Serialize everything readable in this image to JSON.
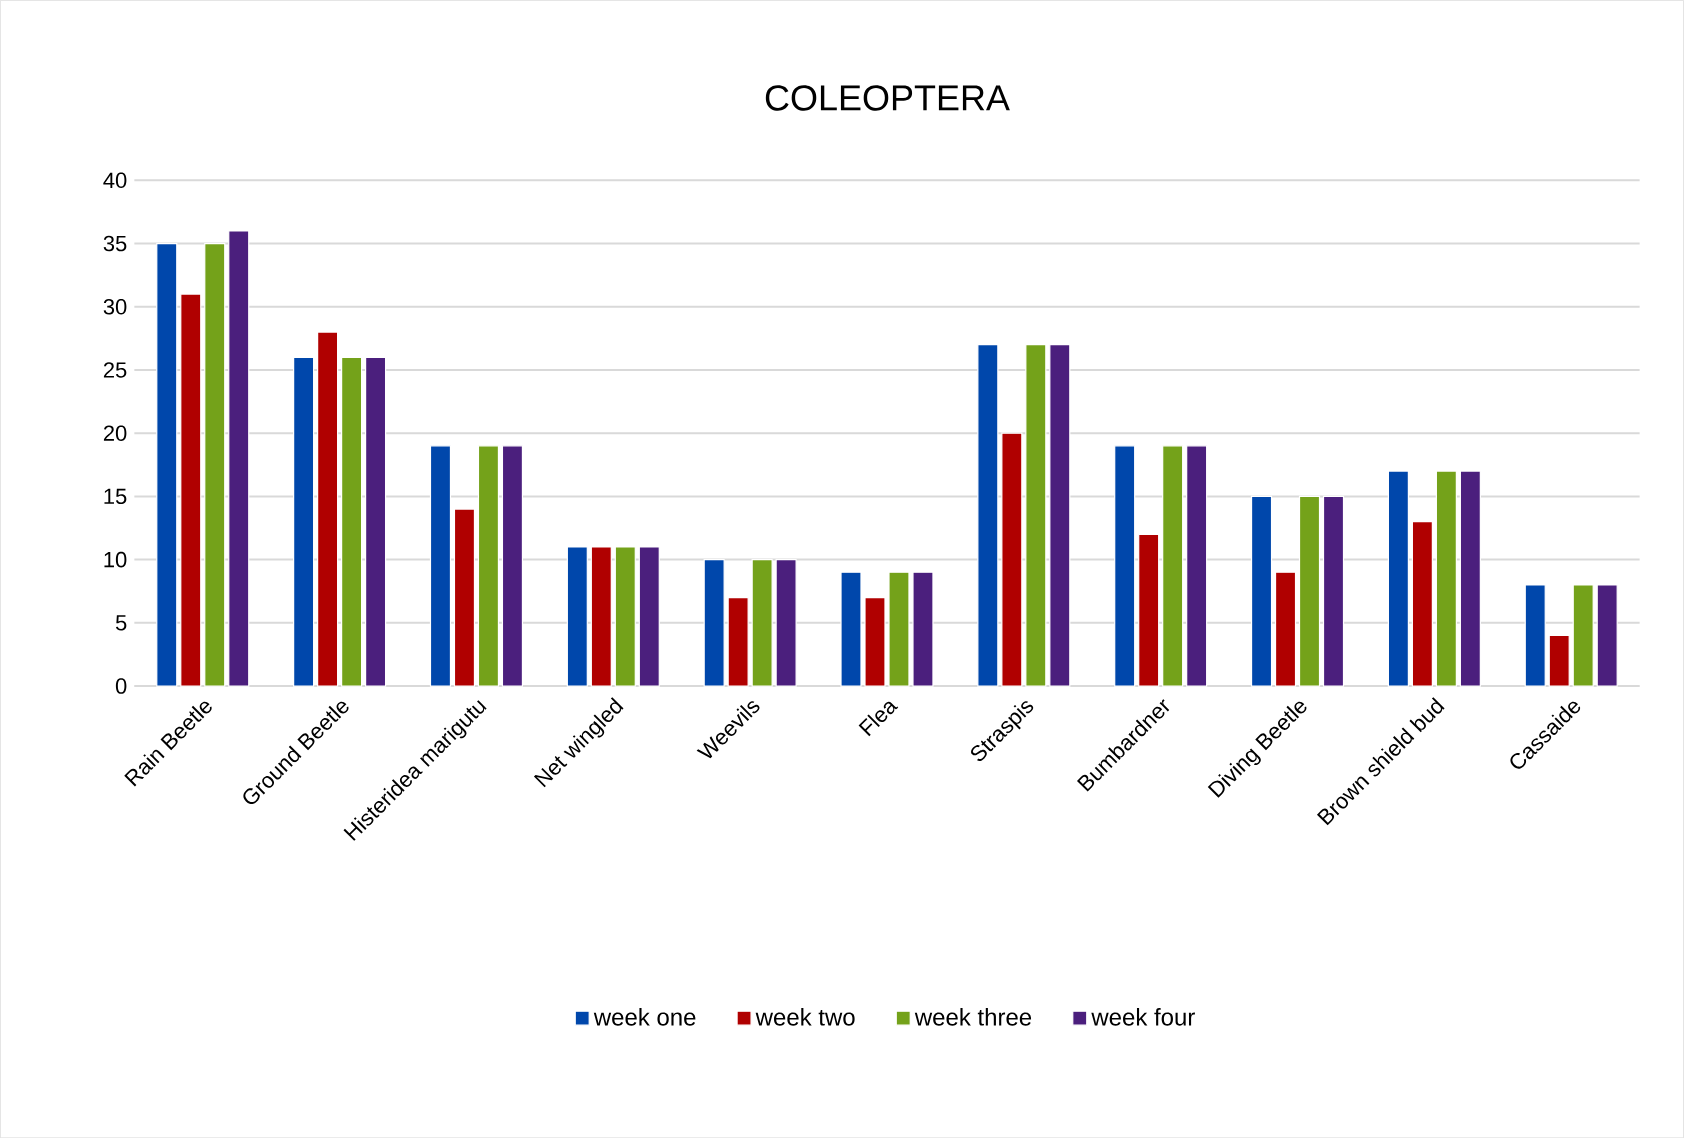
{
  "chart_data": {
    "type": "bar",
    "title": "COLEOPTERA",
    "categories": [
      "Rain Beetle",
      "Ground Beetle",
      "Histeridea marigutu",
      "Net wingled",
      "Weevils",
      "Flea",
      "Straspis",
      "Bumbardner",
      "Diving Beetle",
      "Brown shield bud",
      "Cassaide"
    ],
    "series": [
      {
        "name": "week one",
        "color": "#0047ab",
        "values": [
          35,
          26,
          19,
          11,
          10,
          9,
          27,
          19,
          15,
          17,
          8
        ]
      },
      {
        "name": "week two",
        "color": "#b00000",
        "values": [
          31,
          28,
          14,
          11,
          7,
          7,
          20,
          12,
          9,
          13,
          4
        ]
      },
      {
        "name": "week three",
        "color": "#74a21a",
        "values": [
          35,
          26,
          19,
          11,
          10,
          9,
          27,
          19,
          15,
          17,
          8
        ]
      },
      {
        "name": "week four",
        "color": "#4b1f7d",
        "values": [
          36,
          26,
          19,
          11,
          10,
          9,
          27,
          19,
          15,
          17,
          8
        ]
      }
    ],
    "ylim": [
      0,
      40
    ],
    "yticks": [
      0,
      5,
      10,
      15,
      20,
      25,
      30,
      35,
      40
    ],
    "grid": "y",
    "legend": "bottom"
  }
}
